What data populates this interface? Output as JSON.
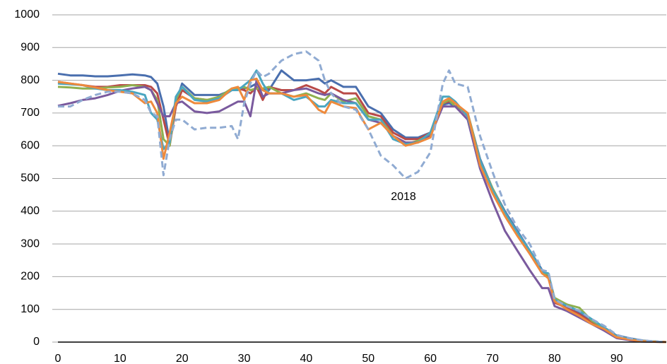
{
  "chart_data": {
    "type": "line",
    "annotation": "2018",
    "x": [
      0,
      2,
      4,
      6,
      8,
      10,
      12,
      14,
      15,
      16,
      17,
      18,
      19,
      20,
      22,
      24,
      26,
      28,
      29,
      30,
      31,
      32,
      33,
      34,
      36,
      38,
      40,
      42,
      43,
      44,
      46,
      48,
      50,
      52,
      54,
      56,
      58,
      60,
      62,
      63,
      64,
      66,
      68,
      70,
      72,
      74,
      76,
      78,
      79,
      80,
      82,
      84,
      86,
      88,
      90,
      92,
      94,
      96,
      98
    ],
    "xlim": [
      0,
      98
    ],
    "xticks": [
      0,
      10,
      20,
      30,
      40,
      50,
      60,
      70,
      80,
      90
    ],
    "ylim": [
      0,
      1000
    ],
    "yticks": [
      0,
      100,
      200,
      300,
      400,
      500,
      600,
      700,
      800,
      900,
      1000
    ],
    "grid": true,
    "series": [
      {
        "color": "#4a6fae",
        "style": "solid",
        "values": [
          820,
          815,
          815,
          812,
          812,
          815,
          818,
          815,
          810,
          790,
          720,
          610,
          730,
          790,
          755,
          755,
          755,
          770,
          775,
          775,
          780,
          790,
          770,
          770,
          830,
          800,
          800,
          805,
          790,
          800,
          780,
          780,
          720,
          700,
          650,
          625,
          625,
          640,
          725,
          730,
          720,
          700,
          560,
          470,
          400,
          340,
          280,
          220,
          205,
          130,
          115,
          90,
          65,
          45,
          20,
          12,
          5,
          2,
          0
        ]
      },
      {
        "color": "#b94a48",
        "style": "solid",
        "values": [
          795,
          790,
          785,
          780,
          780,
          785,
          785,
          785,
          780,
          760,
          680,
          600,
          720,
          770,
          745,
          740,
          745,
          770,
          775,
          770,
          760,
          780,
          740,
          780,
          770,
          770,
          785,
          770,
          760,
          780,
          760,
          760,
          700,
          690,
          640,
          620,
          620,
          640,
          730,
          735,
          730,
          690,
          550,
          460,
          390,
          330,
          270,
          210,
          200,
          120,
          105,
          85,
          60,
          40,
          18,
          10,
          4,
          2,
          0
        ]
      },
      {
        "color": "#8fb04f",
        "style": "solid",
        "values": [
          780,
          778,
          775,
          775,
          778,
          780,
          785,
          780,
          770,
          740,
          620,
          600,
          740,
          780,
          745,
          740,
          750,
          775,
          775,
          780,
          770,
          775,
          775,
          780,
          760,
          750,
          760,
          745,
          740,
          760,
          735,
          745,
          690,
          680,
          630,
          605,
          615,
          635,
          730,
          740,
          720,
          700,
          555,
          470,
          395,
          335,
          275,
          215,
          205,
          135,
          115,
          105,
          65,
          45,
          18,
          10,
          4,
          2,
          0
        ]
      },
      {
        "color": "#7a5a9e",
        "style": "solid",
        "values": [
          722,
          730,
          740,
          745,
          755,
          768,
          775,
          780,
          770,
          730,
          690,
          690,
          730,
          735,
          705,
          700,
          705,
          725,
          735,
          735,
          690,
          800,
          750,
          760,
          760,
          770,
          775,
          760,
          755,
          760,
          740,
          730,
          680,
          670,
          630,
          610,
          610,
          630,
          720,
          720,
          720,
          680,
          530,
          430,
          340,
          280,
          220,
          165,
          165,
          110,
          95,
          75,
          55,
          35,
          12,
          6,
          2,
          1,
          0
        ]
      },
      {
        "color": "#4aa6c0",
        "style": "solid",
        "values": [
          790,
          788,
          785,
          775,
          770,
          770,
          765,
          755,
          700,
          680,
          590,
          610,
          750,
          780,
          740,
          735,
          745,
          770,
          770,
          785,
          800,
          830,
          790,
          760,
          760,
          740,
          750,
          720,
          720,
          740,
          730,
          730,
          680,
          680,
          620,
          605,
          610,
          640,
          750,
          750,
          735,
          690,
          555,
          465,
          395,
          335,
          280,
          215,
          210,
          130,
          110,
          95,
          70,
          45,
          18,
          10,
          4,
          2,
          0
        ]
      },
      {
        "color": "#ee8a3c",
        "style": "solid",
        "values": [
          795,
          790,
          785,
          778,
          770,
          765,
          760,
          730,
          735,
          700,
          560,
          640,
          730,
          750,
          730,
          730,
          740,
          775,
          780,
          740,
          800,
          805,
          770,
          760,
          760,
          750,
          755,
          710,
          700,
          735,
          720,
          715,
          650,
          670,
          630,
          600,
          610,
          625,
          735,
          745,
          730,
          700,
          540,
          455,
          385,
          325,
          270,
          210,
          195,
          125,
          100,
          80,
          55,
          40,
          15,
          8,
          3,
          1,
          0
        ]
      },
      {
        "color": "#90abd2",
        "style": "dashed",
        "values": [
          720,
          720,
          740,
          755,
          765,
          765,
          760,
          740,
          700,
          690,
          510,
          620,
          680,
          680,
          650,
          655,
          655,
          660,
          620,
          730,
          790,
          830,
          810,
          820,
          860,
          880,
          888,
          860,
          800,
          760,
          720,
          710,
          650,
          570,
          540,
          500,
          520,
          580,
          790,
          830,
          790,
          780,
          630,
          520,
          420,
          350,
          300,
          220,
          215,
          130,
          110,
          95,
          70,
          50,
          22,
          12,
          6,
          2,
          0
        ]
      }
    ]
  }
}
